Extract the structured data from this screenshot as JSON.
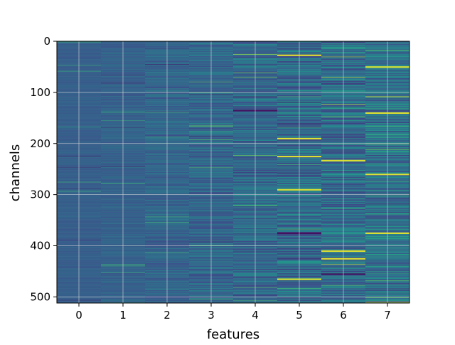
{
  "chart_data": {
    "type": "heatmap",
    "title": "",
    "xlabel": "features",
    "ylabel": "channels",
    "x_categories": [
      "0",
      "1",
      "2",
      "3",
      "4",
      "5",
      "6",
      "7"
    ],
    "y_ticks": [
      0,
      100,
      200,
      300,
      400,
      500
    ],
    "rows": 512,
    "ylim": [
      512,
      0
    ],
    "xlim": [
      -0.5,
      7.5
    ],
    "grid": true,
    "grid_color": "#d9d9d9",
    "colormap": "viridis",
    "colormap_stops": [
      "#440154",
      "#3b528b",
      "#21918c",
      "#5ec962",
      "#fde725"
    ],
    "column_base_level": [
      0.3,
      0.31,
      0.32,
      0.33,
      0.34,
      0.35,
      0.36,
      0.37
    ],
    "column_variability": [
      0.03,
      0.05,
      0.08,
      0.11,
      0.14,
      0.17,
      0.18,
      0.18
    ],
    "notable_bright_rows": {
      "5": [
        27,
        190,
        225,
        290,
        465
      ],
      "6": [
        233,
        410,
        425
      ],
      "7": [
        50,
        140,
        260,
        375
      ]
    },
    "notable_dark_rows": {
      "4": [
        135
      ],
      "5": [
        375
      ],
      "6": [
        455
      ]
    }
  }
}
